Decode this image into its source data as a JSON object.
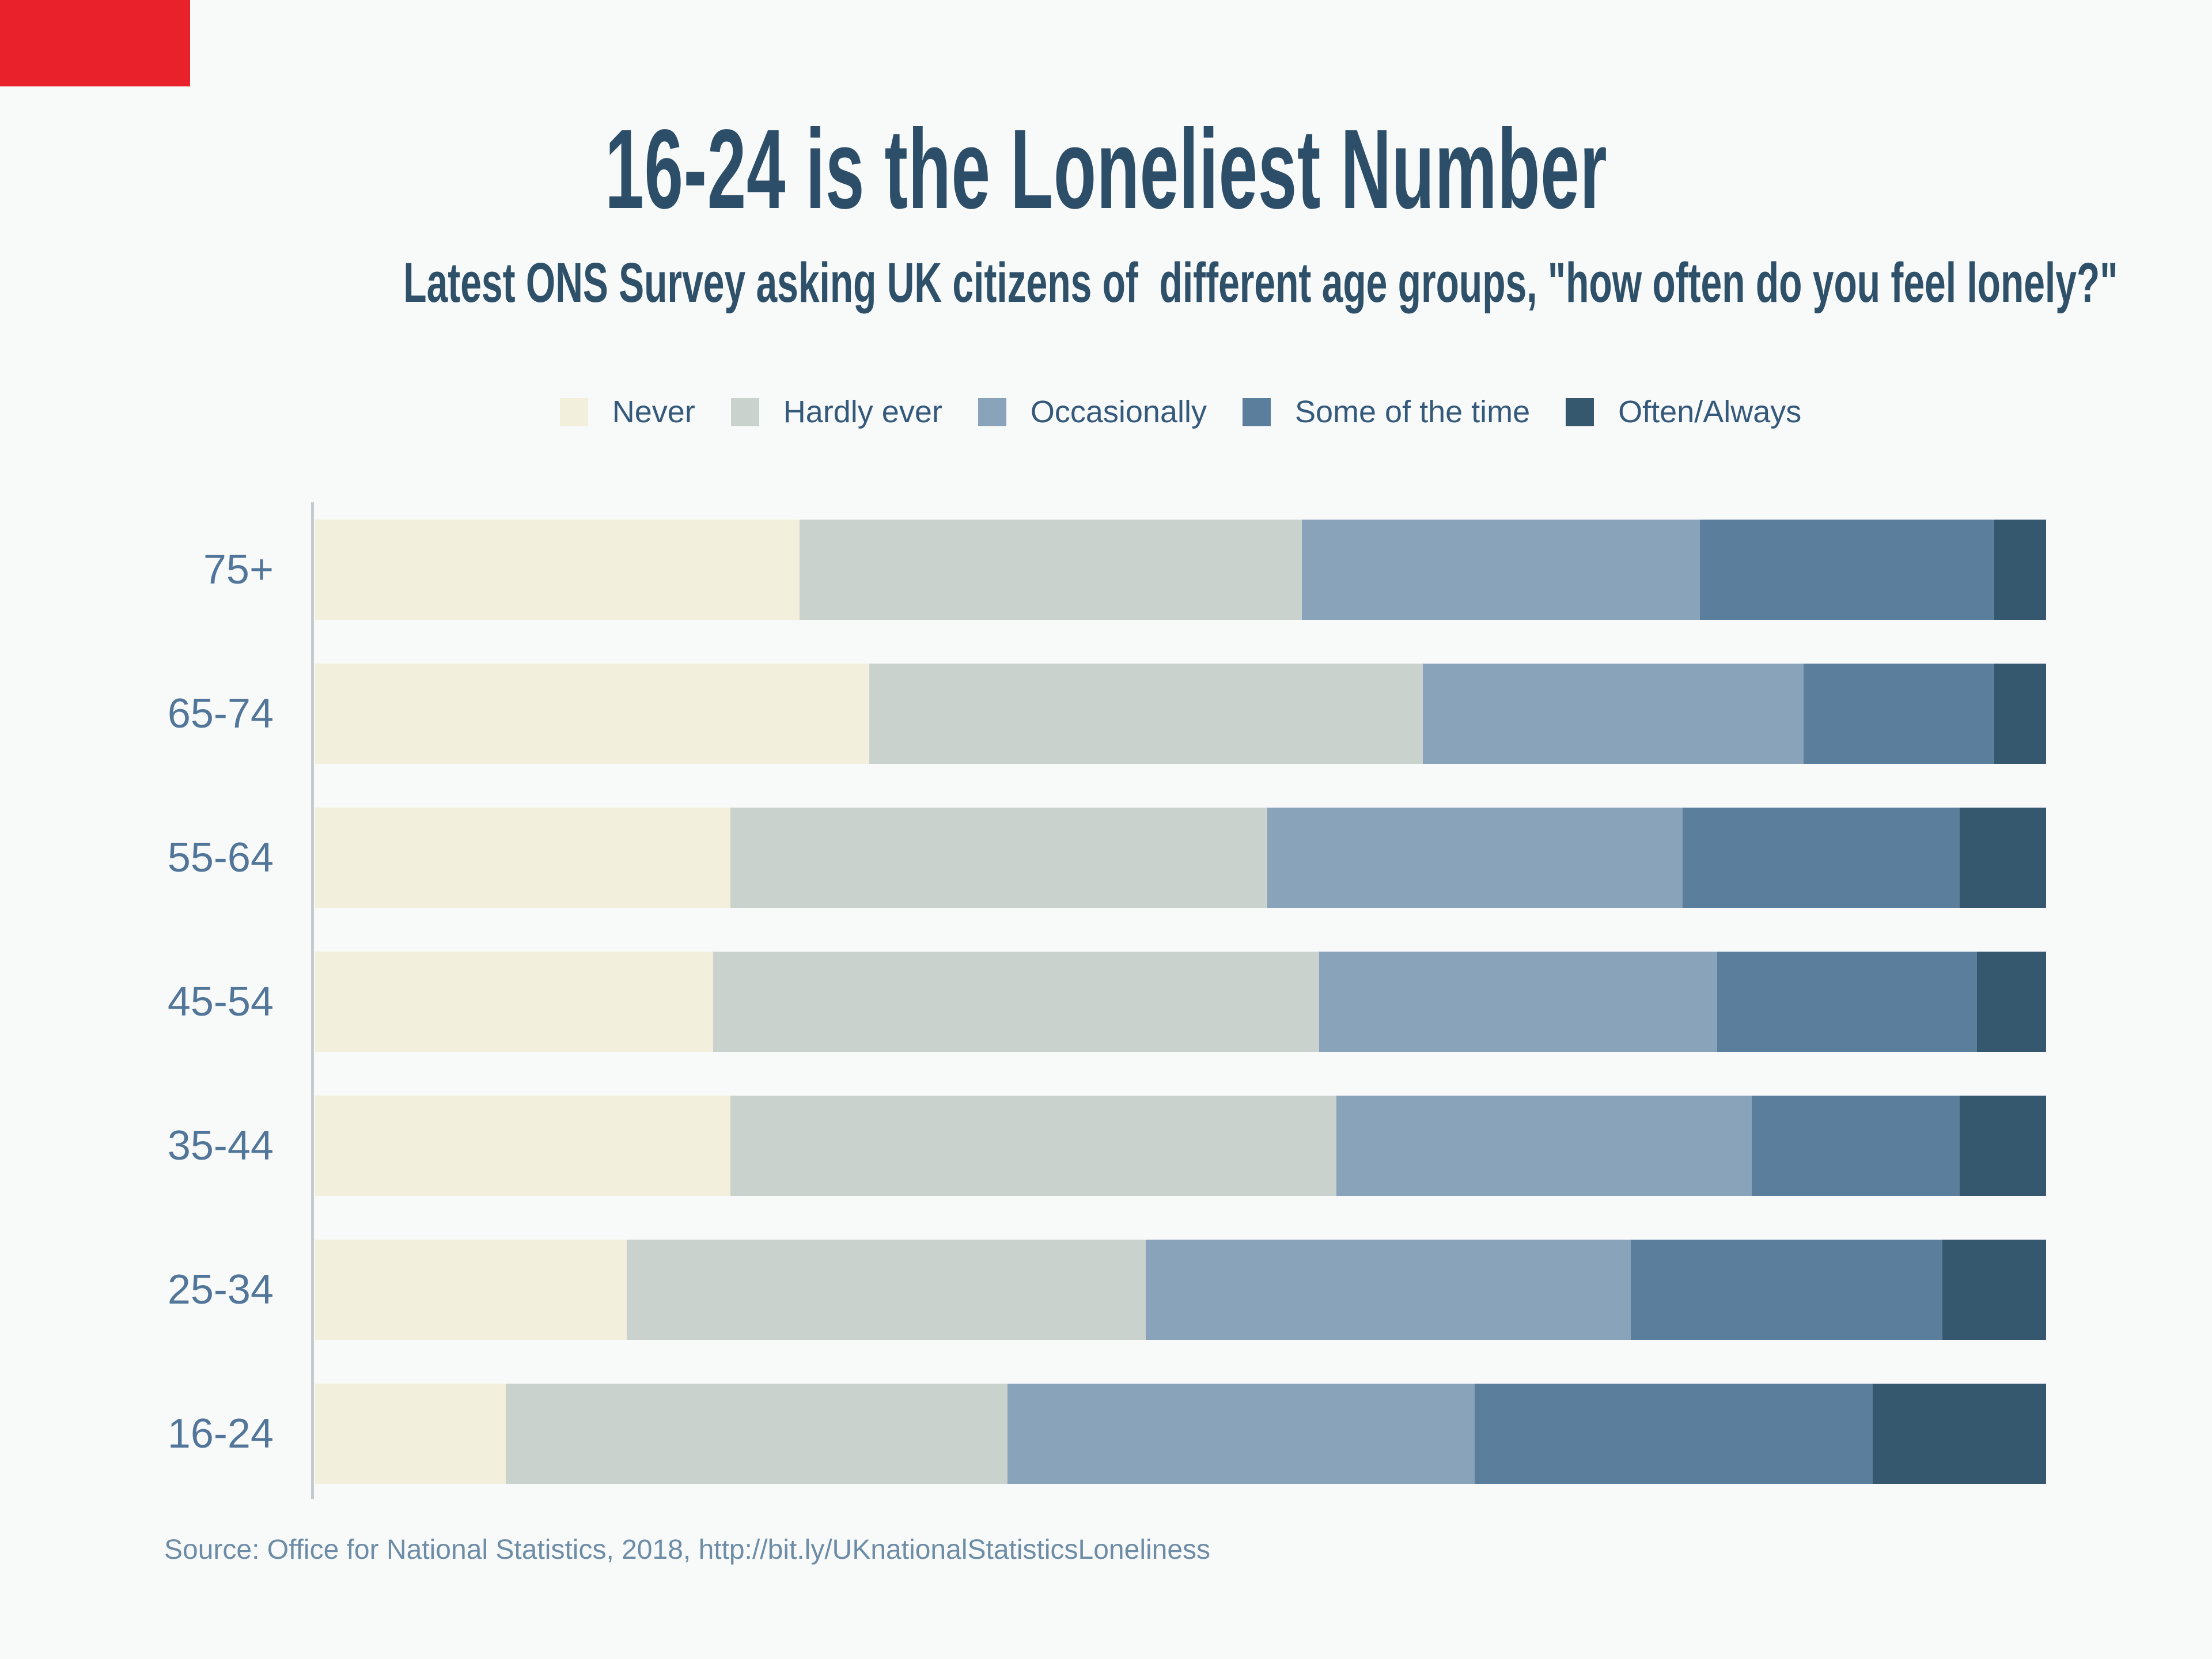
{
  "corner_marker": {
    "color": "#e8212a"
  },
  "header": {
    "title": "16-24 is the Loneliest Number",
    "subtitle": "Latest ONS Survey asking UK citizens of  different age groups, \"how often do you feel lonely?\""
  },
  "footer": {
    "source": "Source: Office for National Statistics, 2018, http://bit.ly/UKnationalStatisticsLoneliness"
  },
  "palette": {
    "background": "#f8f9f9",
    "title_color": "#2c4e68",
    "axis_label_color": "#527699",
    "legend_text_color": "#35597a",
    "source_color": "#6d8ca6",
    "axis_line_color": "#c5cacc"
  },
  "chart_data": {
    "type": "bar",
    "orientation": "horizontal",
    "stacked": true,
    "units": "percent of respondents",
    "xlim": [
      0,
      100
    ],
    "grid": false,
    "legend_position": "top",
    "title": "16-24 is the Loneliest Number",
    "categories": [
      "75+",
      "65-74",
      "55-64",
      "45-54",
      "35-44",
      "25-34",
      "16-24"
    ],
    "series": [
      {
        "name": "Never",
        "color": "#f2efdc",
        "values": [
          28,
          32,
          24,
          23,
          24,
          18,
          11
        ]
      },
      {
        "name": "Hardly ever",
        "color": "#c9d2cc",
        "values": [
          29,
          32,
          31,
          35,
          35,
          30,
          29
        ]
      },
      {
        "name": "Occasionally",
        "color": "#89a3ba",
        "values": [
          23,
          22,
          24,
          23,
          24,
          28,
          27
        ]
      },
      {
        "name": "Some of the time",
        "color": "#5b7e9d",
        "values": [
          17,
          11,
          16,
          15,
          12,
          18,
          23
        ]
      },
      {
        "name": "Often/Always",
        "color": "#36586e",
        "values": [
          3,
          3,
          5,
          4,
          5,
          6,
          10
        ]
      }
    ]
  }
}
